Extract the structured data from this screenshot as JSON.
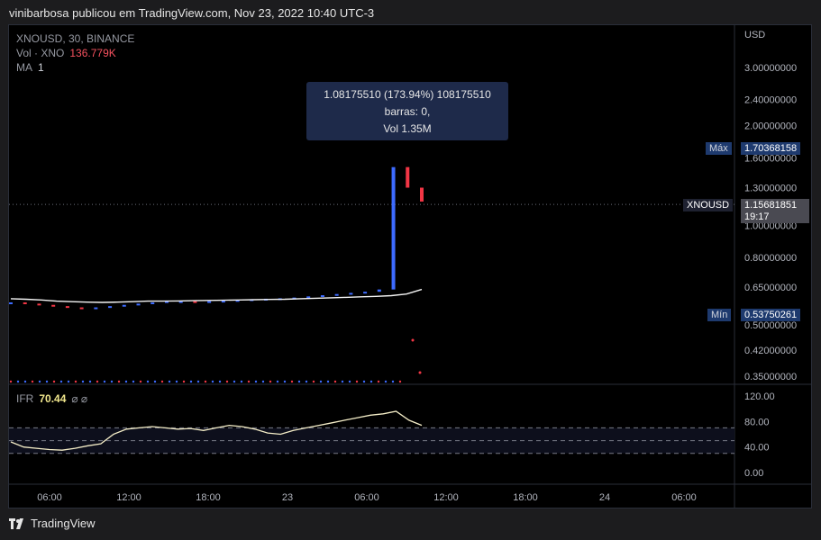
{
  "header": {
    "published_by": "vinibarbosa publicou em TradingView.com, Nov 23, 2022 10:40 UTC-3"
  },
  "footer": {
    "brand": "TradingView"
  },
  "legend": {
    "symbol": "XNOUSD, 30, BINANCE",
    "vol_label": "Vol · XNO",
    "vol_value": "136.779K",
    "ma_label": "MA",
    "ma_value": "1"
  },
  "tooltip": {
    "line1": "1.08175510 (173.94%) 108175510",
    "line2": "barras: 0,",
    "line3": "Vol 1.35M"
  },
  "labels": {
    "currency": "USD",
    "max_label": "Máx",
    "max_value": "1.70368158",
    "min_label": "Mín",
    "min_value": "0.53750261",
    "symbol_tag": "XNOUSD",
    "last_price": "1.15681851",
    "countdown": "19:17"
  },
  "rsi": {
    "label": "IFR",
    "value": "70.44",
    "icons": "⌀ ⌀"
  },
  "colors": {
    "up": "#3d6bff",
    "down": "#f23645",
    "ma_line": "#f5f5f5",
    "rsi_line": "#f5eec8",
    "grid_bg": "#000000",
    "tag_bg": "#1e3a6e"
  },
  "chart_data": {
    "type": "line",
    "x_ticks": [
      "06:00",
      "12:00",
      "18:00",
      "23",
      "06:00",
      "12:00",
      "18:00",
      "24",
      "06:00"
    ],
    "price_axis": {
      "scale": "log",
      "ticks": [
        "3.00000000",
        "2.40000000",
        "2.00000000",
        "1.60000000",
        "1.30000000",
        "1.00000000",
        "0.80000000",
        "0.65000000",
        "0.50000000",
        "0.42000000",
        "0.35000000"
      ]
    },
    "rsi_axis": {
      "ticks": [
        "120.00",
        "80.00",
        "40.00",
        "0.00"
      ],
      "bands": [
        30,
        50,
        70
      ]
    },
    "price_series": [
      0.585,
      0.58,
      0.575,
      0.57,
      0.565,
      0.56,
      0.565,
      0.57,
      0.575,
      0.58,
      0.585,
      0.59,
      0.59,
      0.588,
      0.59,
      0.592,
      0.595,
      0.598,
      0.6,
      0.602,
      0.605,
      0.61,
      0.615,
      0.62,
      0.625,
      0.63,
      0.64,
      1.5,
      1.3,
      1.18
    ],
    "ma_series": [
      0.6,
      0.598,
      0.595,
      0.59,
      0.588,
      0.586,
      0.585,
      0.586,
      0.588,
      0.59,
      0.59,
      0.591,
      0.592,
      0.593,
      0.594,
      0.595,
      0.596,
      0.597,
      0.598,
      0.6,
      0.602,
      0.604,
      0.606,
      0.608,
      0.61,
      0.613,
      0.62,
      0.64
    ],
    "rsi_series": [
      48,
      40,
      38,
      36,
      35,
      38,
      42,
      45,
      60,
      68,
      70,
      72,
      70,
      68,
      69,
      66,
      70,
      74,
      72,
      68,
      62,
      60,
      66,
      70,
      74,
      78,
      82,
      86,
      90,
      92,
      96,
      82,
      74
    ]
  }
}
